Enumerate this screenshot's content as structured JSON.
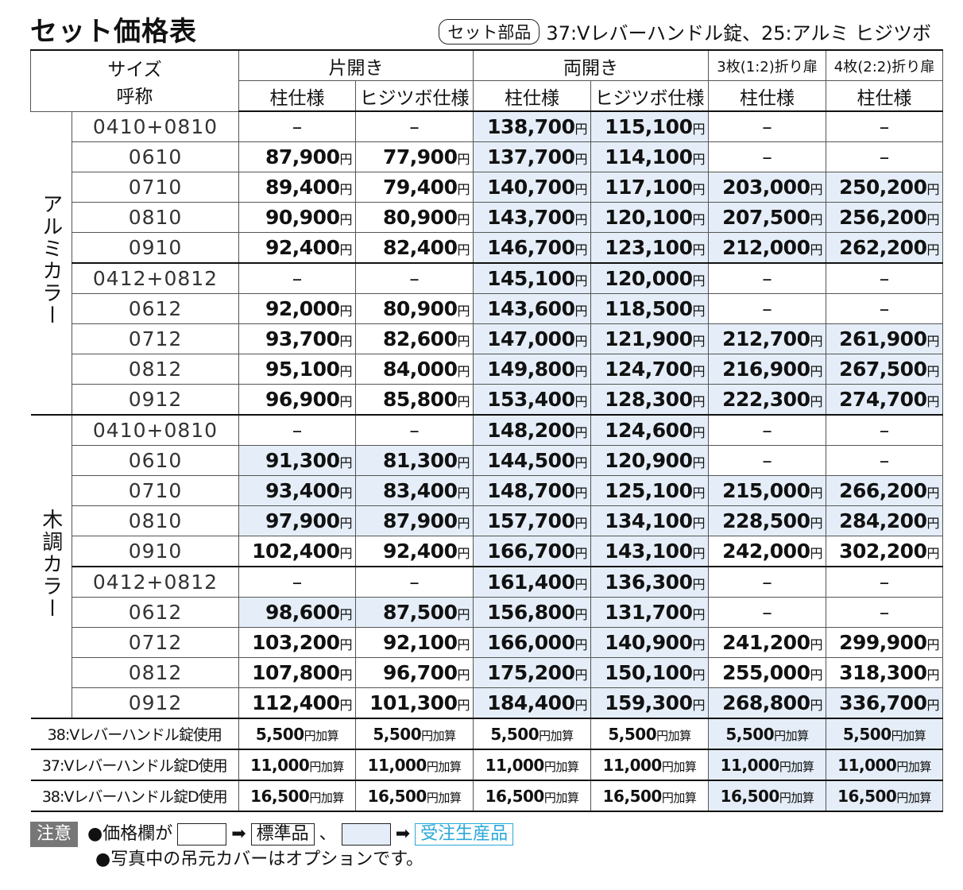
{
  "title": "セット価格表",
  "parts": {
    "label": "セット部品",
    "text": "37:Vレバーハンドル錠、25:アルミ ヒジツボ"
  },
  "header": {
    "size": "サイズ",
    "name": "呼称",
    "groups": [
      "片開き",
      "両開き",
      "3枚(1:2)折り扉",
      "4枚(2:2)折り扉"
    ],
    "sub": [
      "柱仕様",
      "ヒジツボ仕様",
      "柱仕様",
      "ヒジツボ仕様",
      "柱仕様",
      "柱仕様"
    ]
  },
  "sections": [
    {
      "label": "アルミカラー",
      "rows": [
        {
          "size": "0410+0810",
          "cells": [
            "–",
            "–",
            "138,700円",
            "115,100円",
            "–",
            "–"
          ],
          "blue": [
            0,
            0,
            1,
            1,
            0,
            0
          ]
        },
        {
          "size": "0610",
          "cells": [
            "87,900円",
            "77,900円",
            "137,700円",
            "114,100円",
            "–",
            "–"
          ],
          "blue": [
            0,
            0,
            1,
            1,
            0,
            0
          ]
        },
        {
          "size": "0710",
          "cells": [
            "89,400円",
            "79,400円",
            "140,700円",
            "117,100円",
            "203,000円",
            "250,200円"
          ],
          "blue": [
            0,
            0,
            1,
            1,
            1,
            1
          ]
        },
        {
          "size": "0810",
          "cells": [
            "90,900円",
            "80,900円",
            "143,700円",
            "120,100円",
            "207,500円",
            "256,200円"
          ],
          "blue": [
            0,
            0,
            1,
            1,
            1,
            1
          ]
        },
        {
          "size": "0910",
          "cells": [
            "92,400円",
            "82,400円",
            "146,700円",
            "123,100円",
            "212,000円",
            "262,200円"
          ],
          "blue": [
            0,
            0,
            1,
            1,
            1,
            1
          ]
        },
        {
          "size": "0412+0812",
          "cells": [
            "–",
            "–",
            "145,100円",
            "120,000円",
            "–",
            "–"
          ],
          "blue": [
            0,
            0,
            1,
            1,
            0,
            0
          ]
        },
        {
          "size": "0612",
          "cells": [
            "92,000円",
            "80,900円",
            "143,600円",
            "118,500円",
            "–",
            "–"
          ],
          "blue": [
            0,
            0,
            1,
            1,
            0,
            0
          ]
        },
        {
          "size": "0712",
          "cells": [
            "93,700円",
            "82,600円",
            "147,000円",
            "121,900円",
            "212,700円",
            "261,900円"
          ],
          "blue": [
            0,
            0,
            1,
            1,
            1,
            1
          ]
        },
        {
          "size": "0812",
          "cells": [
            "95,100円",
            "84,000円",
            "149,800円",
            "124,700円",
            "216,900円",
            "267,500円"
          ],
          "blue": [
            0,
            0,
            1,
            1,
            1,
            1
          ]
        },
        {
          "size": "0912",
          "cells": [
            "96,900円",
            "85,800円",
            "153,400円",
            "128,300円",
            "222,300円",
            "274,700円"
          ],
          "blue": [
            0,
            0,
            1,
            1,
            1,
            1
          ]
        }
      ]
    },
    {
      "label": "木調カラー",
      "rows": [
        {
          "size": "0410+0810",
          "cells": [
            "–",
            "–",
            "148,200円",
            "124,600円",
            "–",
            "–"
          ],
          "blue": [
            0,
            0,
            1,
            1,
            0,
            0
          ]
        },
        {
          "size": "0610",
          "cells": [
            "91,300円",
            "81,300円",
            "144,500円",
            "120,900円",
            "–",
            "–"
          ],
          "blue": [
            1,
            1,
            1,
            1,
            0,
            0
          ]
        },
        {
          "size": "0710",
          "cells": [
            "93,400円",
            "83,400円",
            "148,700円",
            "125,100円",
            "215,000円",
            "266,200円"
          ],
          "blue": [
            1,
            1,
            1,
            1,
            1,
            1
          ]
        },
        {
          "size": "0810",
          "cells": [
            "97,900円",
            "87,900円",
            "157,700円",
            "134,100円",
            "228,500円",
            "284,200円"
          ],
          "blue": [
            1,
            1,
            1,
            1,
            1,
            1
          ]
        },
        {
          "size": "0910",
          "cells": [
            "102,400円",
            "92,400円",
            "166,700円",
            "143,100円",
            "242,000円",
            "302,200円"
          ],
          "blue": [
            0,
            0,
            1,
            1,
            0,
            0
          ]
        },
        {
          "size": "0412+0812",
          "cells": [
            "–",
            "–",
            "161,400円",
            "136,300円",
            "–",
            "–"
          ],
          "blue": [
            0,
            0,
            1,
            1,
            0,
            0
          ]
        },
        {
          "size": "0612",
          "cells": [
            "98,600円",
            "87,500円",
            "156,800円",
            "131,700円",
            "–",
            "–"
          ],
          "blue": [
            1,
            1,
            1,
            1,
            0,
            0
          ]
        },
        {
          "size": "0712",
          "cells": [
            "103,200円",
            "92,100円",
            "166,000円",
            "140,900円",
            "241,200円",
            "299,900円"
          ],
          "blue": [
            0,
            0,
            1,
            1,
            0,
            0
          ]
        },
        {
          "size": "0812",
          "cells": [
            "107,800円",
            "96,700円",
            "175,200円",
            "150,100円",
            "255,000円",
            "318,300円"
          ],
          "blue": [
            0,
            0,
            1,
            1,
            0,
            0
          ]
        },
        {
          "size": "0912",
          "cells": [
            "112,400円",
            "101,300円",
            "184,400円",
            "159,300円",
            "268,800円",
            "336,700円"
          ],
          "blue": [
            0,
            0,
            1,
            1,
            1,
            1
          ]
        }
      ]
    }
  ],
  "surcharges": [
    {
      "label": "38:Vレバーハンドル錠使用",
      "cells": [
        "5,500円加算",
        "5,500円加算",
        "5,500円加算",
        "5,500円加算",
        "5,500円加算",
        "5,500円加算"
      ],
      "blue": [
        0,
        0,
        0,
        0,
        1,
        1
      ]
    },
    {
      "label": "37:Vレバーハンドル錠D使用",
      "cells": [
        "11,000円加算",
        "11,000円加算",
        "11,000円加算",
        "11,000円加算",
        "11,000円加算",
        "11,000円加算"
      ],
      "blue": [
        0,
        0,
        0,
        0,
        1,
        1
      ]
    },
    {
      "label": "38:Vレバーハンドル錠D使用",
      "cells": [
        "16,500円加算",
        "16,500円加算",
        "16,500円加算",
        "16,500円加算",
        "16,500円加算",
        "16,500円加算"
      ],
      "blue": [
        0,
        0,
        0,
        0,
        1,
        1
      ]
    }
  ],
  "notes": {
    "label": "注意",
    "line1": "●価格欄が",
    "standard": "標準品",
    "sep": "、",
    "made_to_order": "受注生産品",
    "line2": "●写真中の吊元カバーはオプションです。"
  }
}
